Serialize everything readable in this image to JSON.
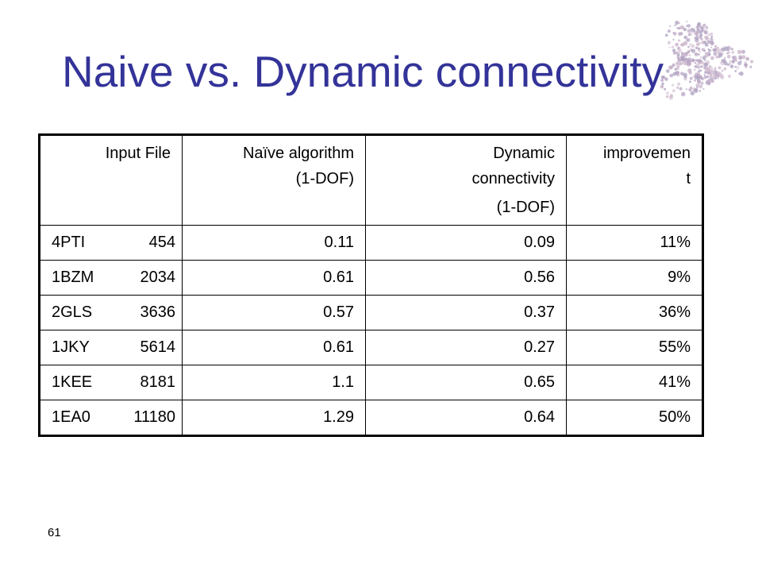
{
  "slide": {
    "title": "Naive vs. Dynamic connectivity",
    "number": "61"
  },
  "table": {
    "headers": [
      {
        "lines": [
          "Input File"
        ]
      },
      {
        "lines": [
          "Naïve algorithm",
          "(1-DOF)"
        ]
      },
      {
        "lines": [
          "Dynamic",
          "connectivity",
          "(1-DOF)"
        ]
      },
      {
        "lines": [
          "improvemen",
          "t"
        ]
      }
    ],
    "rows": [
      {
        "input_id": "4PTI",
        "input_size": "454",
        "naive": "0.11",
        "dynamic": "0.09",
        "improvement": "11%"
      },
      {
        "input_id": "1BZM",
        "input_size": "2034",
        "naive": "0.61",
        "dynamic": "0.56",
        "improvement": "9%"
      },
      {
        "input_id": "2GLS",
        "input_size": "3636",
        "naive": "0.57",
        "dynamic": "0.37",
        "improvement": "36%"
      },
      {
        "input_id": "1JKY",
        "input_size": "5614",
        "naive": "0.61",
        "dynamic": "0.27",
        "improvement": "55%"
      },
      {
        "input_id": "1KEE",
        "input_size": "8181",
        "naive": "1.1",
        "dynamic": "0.65",
        "improvement": "41%"
      },
      {
        "input_id": "1EA0",
        "input_size": "11180",
        "naive": "1.29",
        "dynamic": "0.64",
        "improvement": "50%"
      }
    ]
  },
  "decoration": {
    "protein_colors": [
      "#c9b3c9",
      "#b8a4c4",
      "#d8c8d8",
      "#a9a0c0"
    ]
  }
}
